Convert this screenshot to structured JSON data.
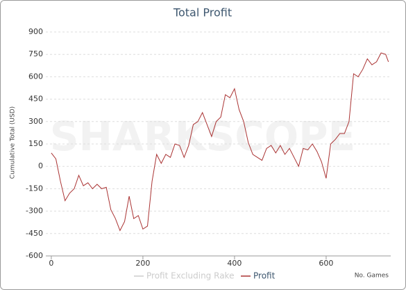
{
  "chart_data": {
    "type": "line",
    "title": "Total Profit",
    "watermark": "SHARKSCOPE",
    "y_label": "Cumulative Total (USD)",
    "x_label": "No. Games",
    "x": [
      0,
      10,
      20,
      30,
      40,
      50,
      60,
      70,
      80,
      90,
      100,
      110,
      120,
      130,
      140,
      150,
      160,
      170,
      180,
      190,
      200,
      210,
      220,
      230,
      240,
      250,
      260,
      270,
      280,
      290,
      300,
      310,
      320,
      330,
      340,
      350,
      360,
      370,
      380,
      390,
      400,
      410,
      420,
      430,
      440,
      450,
      460,
      470,
      480,
      490,
      500,
      510,
      520,
      530,
      540,
      550,
      560,
      570,
      580,
      590,
      600,
      610,
      620,
      630,
      640,
      650,
      660,
      670,
      680,
      690,
      700,
      710,
      720,
      730,
      736
    ],
    "series": [
      {
        "name": "Profit Excluding Rake",
        "color": "#cccccc",
        "visible": false,
        "values": [
          null,
          null,
          null,
          null,
          null,
          null,
          null,
          null,
          null,
          null,
          null,
          null,
          null,
          null,
          null,
          null,
          null,
          null,
          null,
          null,
          null,
          null,
          null,
          null,
          null,
          null,
          null,
          null,
          null,
          null,
          null,
          null,
          null,
          null,
          null,
          null,
          null,
          null,
          null,
          null,
          null,
          null,
          null,
          null,
          null,
          null,
          null,
          null,
          null,
          null,
          null,
          null,
          null,
          null,
          null,
          null,
          null,
          null,
          null,
          null,
          null,
          null,
          null,
          null,
          null,
          null,
          null,
          null,
          null,
          null,
          null,
          null,
          null,
          null,
          null
        ]
      },
      {
        "name": "Profit",
        "color": "#aa3333",
        "visible": true,
        "values": [
          90,
          50,
          -100,
          -230,
          -180,
          -150,
          -60,
          -130,
          -110,
          -150,
          -120,
          -150,
          -140,
          -290,
          -350,
          -430,
          -370,
          -200,
          -350,
          -330,
          -420,
          -400,
          -100,
          80,
          20,
          80,
          60,
          150,
          140,
          60,
          140,
          280,
          300,
          360,
          280,
          200,
          300,
          330,
          480,
          460,
          520,
          380,
          300,
          160,
          80,
          60,
          40,
          120,
          140,
          90,
          140,
          80,
          120,
          60,
          0,
          120,
          110,
          150,
          100,
          30,
          -80,
          150,
          180,
          220,
          220,
          300,
          620,
          600,
          650,
          720,
          680,
          700,
          760,
          750,
          700
        ]
      }
    ],
    "xlim": [
      -12,
      741
    ],
    "xticks": [
      0,
      200,
      400,
      600
    ],
    "ylim": [
      -600,
      900
    ],
    "yticks": [
      -600,
      -450,
      -300,
      -150,
      0,
      150,
      300,
      450,
      600,
      750,
      900
    ],
    "grid": true
  }
}
